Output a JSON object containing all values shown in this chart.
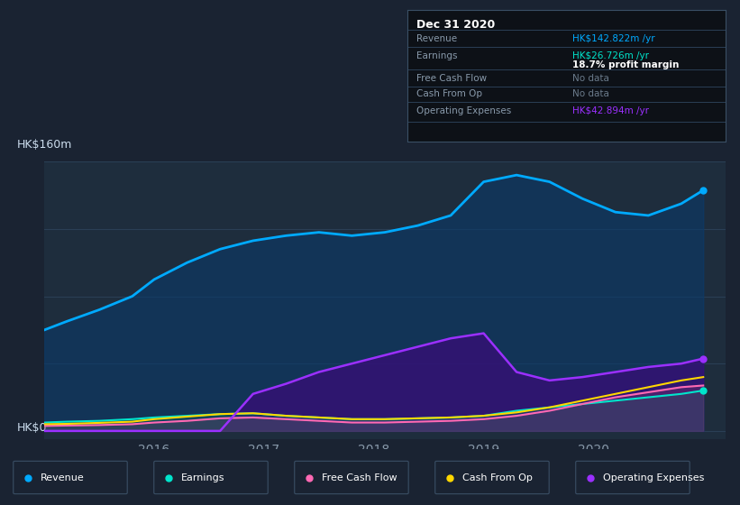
{
  "background_color": "#1a2332",
  "plot_bg_color": "#1e2d3d",
  "grid_color": "#2a3f55",
  "title_label": "HK$160m",
  "zero_label": "HK$0",
  "x_ticks": [
    2016,
    2017,
    2018,
    2019,
    2020
  ],
  "y_max": 160,
  "y_min": -5,
  "x_min": 2015.0,
  "x_max": 2021.2,
  "revenue_color": "#00aaff",
  "earnings_color": "#00e5cc",
  "fcf_color": "#ff69b4",
  "cashfromop_color": "#ffd700",
  "opex_color": "#9b30ff",
  "legend": [
    {
      "label": "Revenue",
      "color": "#00aaff"
    },
    {
      "label": "Earnings",
      "color": "#00e5cc"
    },
    {
      "label": "Free Cash Flow",
      "color": "#ff69b4"
    },
    {
      "label": "Cash From Op",
      "color": "#ffd700"
    },
    {
      "label": "Operating Expenses",
      "color": "#9b30ff"
    }
  ],
  "x_data": [
    2015.0,
    2015.2,
    2015.5,
    2015.8,
    2016.0,
    2016.3,
    2016.6,
    2016.9,
    2017.2,
    2017.5,
    2017.8,
    2018.1,
    2018.4,
    2018.7,
    2019.0,
    2019.3,
    2019.6,
    2019.9,
    2020.2,
    2020.5,
    2020.8,
    2021.0
  ],
  "revenue": [
    60,
    65,
    72,
    80,
    90,
    100,
    108,
    113,
    116,
    118,
    116,
    118,
    122,
    128,
    148,
    152,
    148,
    138,
    130,
    128,
    135,
    143
  ],
  "earnings": [
    5,
    5.5,
    6,
    7,
    8,
    9,
    10,
    10.5,
    9,
    8,
    7,
    7,
    7.5,
    8,
    9,
    12,
    14,
    16,
    18,
    20,
    22,
    24
  ],
  "free_cash_flow": [
    3,
    3.2,
    3.5,
    4,
    5,
    6,
    7.5,
    8,
    7,
    6,
    5,
    5,
    5.5,
    6,
    7,
    9,
    12,
    16,
    20,
    23,
    26,
    27
  ],
  "cash_from_op": [
    4,
    4.2,
    4.8,
    5.5,
    7,
    8.5,
    10,
    10.5,
    9,
    8,
    7,
    7,
    7.5,
    8,
    9,
    11,
    14,
    18,
    22,
    26,
    30,
    32
  ],
  "opex": [
    0,
    0,
    0,
    0,
    0,
    0,
    0,
    22,
    28,
    35,
    40,
    45,
    50,
    55,
    58,
    35,
    30,
    32,
    35,
    38,
    40,
    43
  ]
}
